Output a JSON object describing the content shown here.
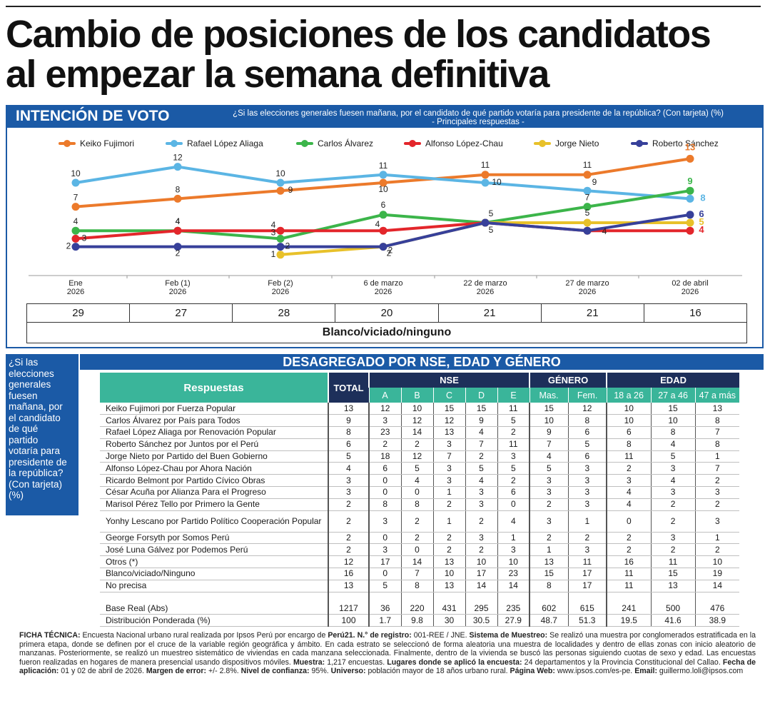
{
  "headline": {
    "line1": "Cambio de posiciones de los candidatos",
    "line2": "al empezar la semana definitiva"
  },
  "chart_section": {
    "label": "INTENCIÓN DE VOTO",
    "question_line1": "¿Si las elecciones generales fuesen mañana, por el candidato de qué partido votaría para presidente de la república? (Con tarjeta) (%)",
    "question_line2": "- Principales respuestas -"
  },
  "colors": {
    "band": "#1b5aa6",
    "navy": "#1d2f5a",
    "teal": "#3ab59a",
    "keiko": "#ec7a2b",
    "rla": "#5bb5e4",
    "carlos": "#3cb54a",
    "alfonso": "#e3262b",
    "jorge": "#e8c12a",
    "roberto": "#37409a"
  },
  "chart_data": {
    "type": "line",
    "title": "INTENCIÓN DE VOTO",
    "x": [
      "Ene 2026",
      "Feb (1) 2026",
      "Feb (2) 2026",
      "6 de marzo 2026",
      "22 de marzo 2026",
      "27 de marzo 2026",
      "02 de abril 2026"
    ],
    "x_line1": [
      "Ene",
      "Feb (1)",
      "Feb (2)",
      "6 de marzo",
      "22 de marzo",
      "27 de marzo",
      "02 de abril"
    ],
    "x_line2": [
      "2026",
      "2026",
      "2026",
      "2026",
      "2026",
      "2026",
      "2026"
    ],
    "ylim": [
      0,
      14
    ],
    "grid": false,
    "legend_position": "top",
    "series": [
      {
        "name": "Keiko Fujimori",
        "color": "#ec7a2b",
        "values": [
          7,
          8,
          9,
          10,
          11,
          11,
          13
        ]
      },
      {
        "name": "Rafael López Aliaga",
        "color": "#5bb5e4",
        "values": [
          10,
          12,
          10,
          11,
          10,
          9,
          8
        ]
      },
      {
        "name": "Carlos Álvarez",
        "color": "#3cb54a",
        "values": [
          4,
          4,
          3,
          6,
          5,
          7,
          9
        ]
      },
      {
        "name": "Alfonso López-Chau",
        "color": "#e3262b",
        "values": [
          3,
          4,
          4,
          4,
          5,
          4,
          4
        ]
      },
      {
        "name": "Jorge Nieto",
        "color": "#e8c12a",
        "values": [
          null,
          null,
          1,
          2,
          5,
          5,
          5
        ]
      },
      {
        "name": "Roberto Sánchez",
        "color": "#37409a",
        "values": [
          2,
          2,
          2,
          2,
          5,
          4,
          6
        ]
      }
    ]
  },
  "blanco": {
    "values": [
      "29",
      "27",
      "28",
      "20",
      "21",
      "21",
      "16"
    ],
    "label": "Blanco/viciado/ninguno"
  },
  "sidebar_lines": [
    "¿Si las",
    "elecciones",
    "generales",
    "fuesen",
    "mañana, por",
    "el candidato",
    "de qué",
    "partido",
    "votaría para",
    "presidente de",
    "la república?",
    "(Con tarjeta)",
    "(%)"
  ],
  "desagregado": {
    "title": "DESAGREGADO POR NSE, EDAD Y GÉNERO",
    "col_respuestas": "Respuestas",
    "col_total": "TOTAL",
    "group_nse": "NSE",
    "group_genero": "GÉNERO",
    "group_edad": "EDAD",
    "sub_nse": [
      "A",
      "B",
      "C",
      "D",
      "E"
    ],
    "sub_genero": [
      "Mas.",
      "Fem."
    ],
    "sub_edad": [
      "18 a 26",
      "27 a 46",
      "47 a más"
    ],
    "rows": [
      {
        "name": "Keiko Fujimori por Fuerza Popular",
        "values": [
          "13",
          "12",
          "10",
          "15",
          "15",
          "11",
          "15",
          "12",
          "10",
          "15",
          "13"
        ]
      },
      {
        "name": "Carlos Álvarez por País para Todos",
        "values": [
          "9",
          "3",
          "12",
          "12",
          "9",
          "5",
          "10",
          "8",
          "10",
          "10",
          "8"
        ]
      },
      {
        "name": "Rafael López Aliaga por Renovación Popular",
        "values": [
          "8",
          "23",
          "14",
          "13",
          "4",
          "2",
          "9",
          "6",
          "6",
          "8",
          "7"
        ]
      },
      {
        "name": "Roberto Sánchez por Juntos por el Perú",
        "values": [
          "6",
          "2",
          "2",
          "3",
          "7",
          "11",
          "7",
          "5",
          "8",
          "4",
          "8"
        ]
      },
      {
        "name": "Jorge Nieto por Partido del Buen Gobierno",
        "values": [
          "5",
          "18",
          "12",
          "7",
          "2",
          "3",
          "4",
          "6",
          "11",
          "5",
          "1"
        ]
      },
      {
        "name": "Alfonso López-Chau por Ahora Nación",
        "values": [
          "4",
          "6",
          "5",
          "3",
          "5",
          "5",
          "5",
          "3",
          "2",
          "3",
          "7"
        ]
      },
      {
        "name": "Ricardo Belmont por Partido Cívico Obras",
        "values": [
          "3",
          "0",
          "4",
          "3",
          "4",
          "2",
          "3",
          "3",
          "3",
          "4",
          "2"
        ]
      },
      {
        "name": "César Acuña por Alianza Para el Progreso",
        "values": [
          "3",
          "0",
          "0",
          "1",
          "3",
          "6",
          "3",
          "3",
          "4",
          "3",
          "3"
        ]
      },
      {
        "name": "Marisol Pérez Tello por Primero la Gente",
        "values": [
          "2",
          "8",
          "8",
          "2",
          "3",
          "0",
          "2",
          "3",
          "4",
          "2",
          "2"
        ]
      },
      {
        "name": "Yonhy Lescano por Partido Político Cooperación Popular",
        "values": [
          "2",
          "3",
          "2",
          "1",
          "2",
          "4",
          "3",
          "1",
          "0",
          "2",
          "3"
        ],
        "tall": true
      },
      {
        "name": "George Forsyth por Somos Perú",
        "values": [
          "2",
          "0",
          "2",
          "2",
          "3",
          "1",
          "2",
          "2",
          "2",
          "3",
          "1"
        ]
      },
      {
        "name": "José Luna Gálvez por Podemos Perú",
        "values": [
          "2",
          "3",
          "0",
          "2",
          "2",
          "3",
          "1",
          "3",
          "2",
          "2",
          "2"
        ]
      },
      {
        "name": "Otros (*)",
        "values": [
          "12",
          "17",
          "14",
          "13",
          "10",
          "10",
          "13",
          "11",
          "16",
          "11",
          "10"
        ]
      },
      {
        "name": "Blanco/viciado/Ninguno",
        "values": [
          "16",
          "0",
          "7",
          "10",
          "17",
          "23",
          "15",
          "17",
          "11",
          "15",
          "19"
        ]
      },
      {
        "name": "No precisa",
        "values": [
          "13",
          "5",
          "8",
          "13",
          "14",
          "14",
          "8",
          "17",
          "11",
          "13",
          "14"
        ]
      }
    ],
    "base_rows": [
      {
        "name": "Base Real (Abs)",
        "values": [
          "1217",
          "36",
          "220",
          "431",
          "295",
          "235",
          "602",
          "615",
          "241",
          "500",
          "476"
        ]
      },
      {
        "name": "Distribución Ponderada (%)",
        "values": [
          "100",
          "1.7",
          "9.8",
          "30",
          "30.5",
          "27.9",
          "48.7",
          "51.3",
          "19.5",
          "41.6",
          "38.9"
        ]
      }
    ]
  },
  "ficha": [
    {
      "b": "FICHA TÉCNICA:",
      "t": " Encuesta Nacional urbano rural realizada por Ipsos Perú por encargo de "
    },
    {
      "b": "Perú21. N.° de registro:",
      "t": " 001-REE / JNE. "
    },
    {
      "b": "Sistema de Muestreo:",
      "t": " Se realizó una muestra por conglomerados estratificada en la primera etapa, donde se definen por el cruce de la variable región geográfica y ámbito. En cada estrato se seleccionó de forma aleatoria una muestra de localidades y dentro de ellas zonas con inicio aleatorio de manzanas. Posteriormente, se realizó un muestreo sistemático de viviendas en cada manzana seleccionada. Finalmente, dentro de la vivienda se buscó las personas siguiendo cuotas de sexo y edad. Las encuestas fueron realizadas en hogares de manera presencial usando dispositivos móviles. "
    },
    {
      "b": "Muestra:",
      "t": " 1,217 encuestas. "
    },
    {
      "b": "Lugares donde se aplicó la encuesta:",
      "t": " 24 departamentos y la Provincia Constitucional del Callao. "
    },
    {
      "b": "Fecha de aplicación:",
      "t": " 01 y 02 de abril de 2026. "
    },
    {
      "b": "Margen de error:",
      "t": " +/- 2.8%. "
    },
    {
      "b": "Nivel de confianza:",
      "t": " 95%. "
    },
    {
      "b": "Universo:",
      "t": " población mayor de 18 años urbano rural. "
    },
    {
      "b": "Página Web:",
      "t": " www.ipsos.com/es-pe. "
    },
    {
      "b": "Email:",
      "t": " guillermo.loli@ipsos.com"
    }
  ]
}
